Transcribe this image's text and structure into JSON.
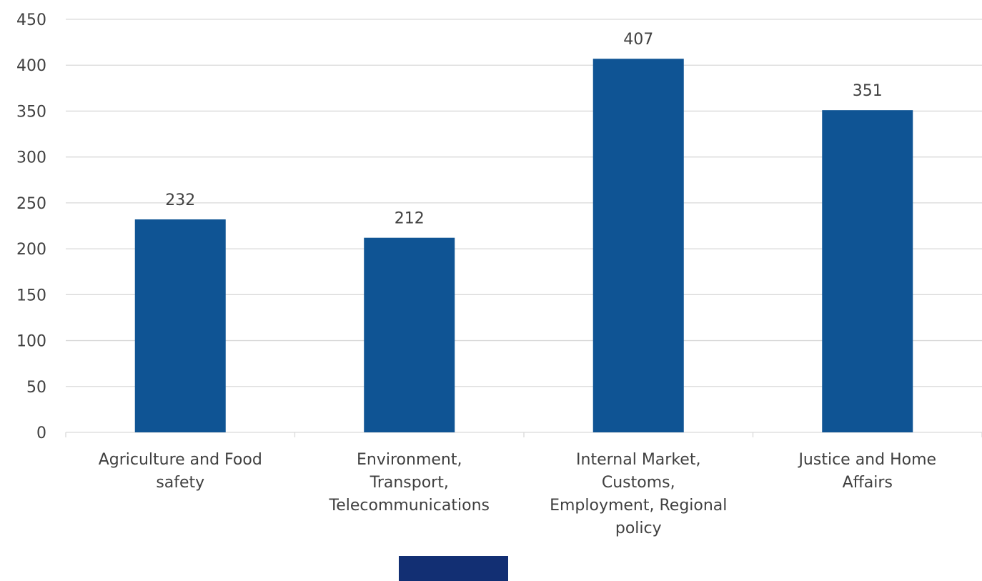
{
  "chart_data": {
    "type": "bar",
    "categories": [
      "Agriculture and Food safety",
      "Environment, Transport, Telecommunications",
      "Internal Market, Customs, Employment, Regional policy",
      "Justice and Home Affairs"
    ],
    "category_lines": [
      [
        "Agriculture and Food",
        "safety"
      ],
      [
        "Environment,",
        "Transport,",
        "Telecommunications"
      ],
      [
        "Internal Market,",
        "Customs,",
        "Employment, Regional",
        "policy"
      ],
      [
        "Justice and Home",
        "Affairs"
      ]
    ],
    "series": [
      {
        "values": [
          232,
          212,
          407,
          351
        ],
        "color": "#0f5494"
      }
    ],
    "data_labels": [
      "232",
      "212",
      "407",
      "351"
    ],
    "y_ticks": [
      "0",
      "50",
      "100",
      "150",
      "200",
      "250",
      "300",
      "350",
      "400",
      "450"
    ],
    "ylim": [
      0,
      450
    ],
    "grid": true,
    "legend_position": "bottom",
    "legend_color": "#122f73",
    "title": "",
    "xlabel": "",
    "ylabel": ""
  }
}
